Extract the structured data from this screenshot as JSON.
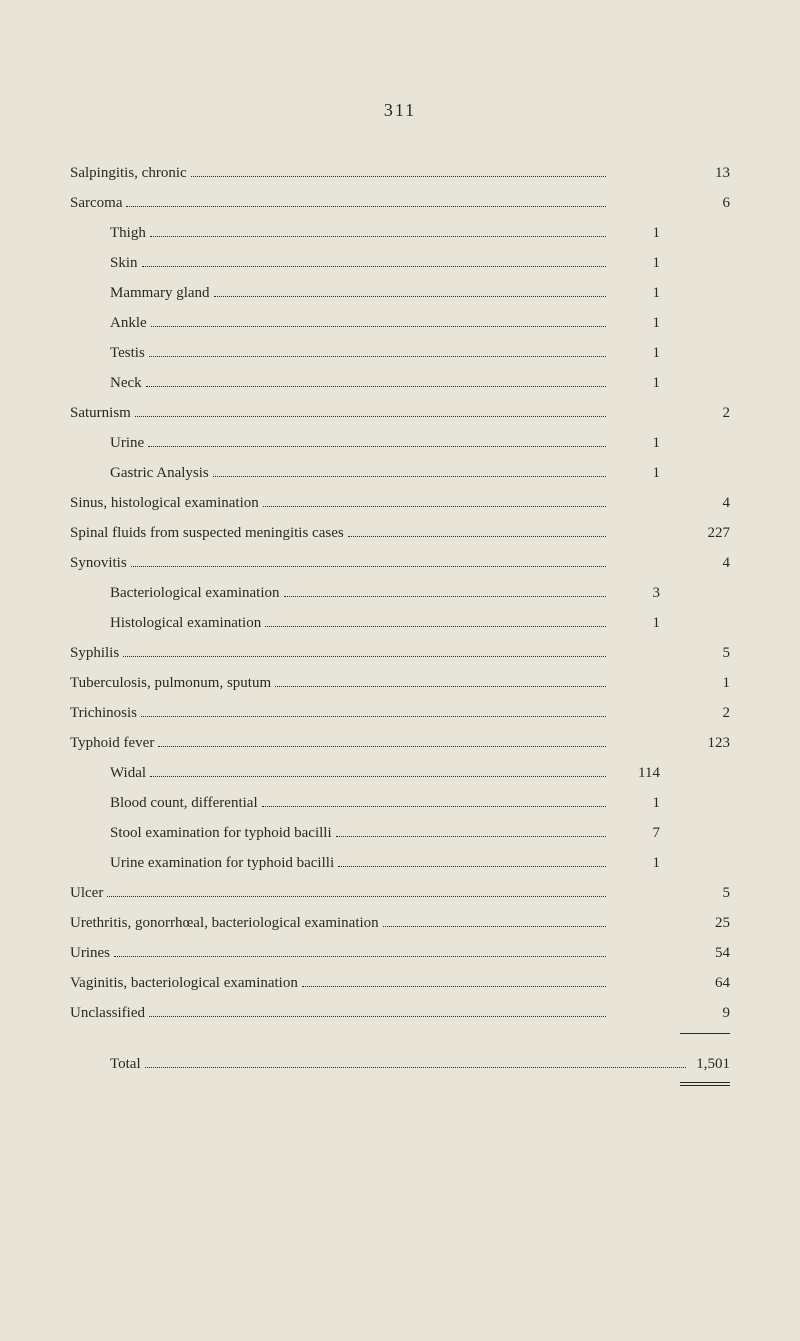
{
  "page_number": "311",
  "colors": {
    "background": "#e8e5d8",
    "text": "#2a2822"
  },
  "typography": {
    "font_family": "Georgia, Times New Roman, serif",
    "body_fontsize": 15,
    "page_number_fontsize": 18
  },
  "entries": [
    {
      "label": "Salpingitis, chronic",
      "indent": false,
      "sub": "",
      "main": "13"
    },
    {
      "label": "Sarcoma",
      "indent": false,
      "sub": "",
      "main": "6"
    },
    {
      "label": "Thigh",
      "indent": true,
      "sub": "1",
      "main": ""
    },
    {
      "label": "Skin",
      "indent": true,
      "sub": "1",
      "main": ""
    },
    {
      "label": "Mammary gland",
      "indent": true,
      "sub": "1",
      "main": ""
    },
    {
      "label": "Ankle",
      "indent": true,
      "sub": "1",
      "main": ""
    },
    {
      "label": "Testis",
      "indent": true,
      "sub": "1",
      "main": ""
    },
    {
      "label": "Neck",
      "indent": true,
      "sub": "1",
      "main": ""
    },
    {
      "label": "Saturnism",
      "indent": false,
      "sub": "",
      "main": "2"
    },
    {
      "label": "Urine",
      "indent": true,
      "sub": "1",
      "main": ""
    },
    {
      "label": "Gastric Analysis",
      "indent": true,
      "sub": "1",
      "main": ""
    },
    {
      "label": "Sinus, histological examination",
      "indent": false,
      "sub": "",
      "main": "4"
    },
    {
      "label": "Spinal fluids from suspected meningitis cases",
      "indent": false,
      "sub": "",
      "main": "227"
    },
    {
      "label": "Synovitis",
      "indent": false,
      "sub": "",
      "main": "4"
    },
    {
      "label": "Bacteriological examination",
      "indent": true,
      "sub": "3",
      "main": ""
    },
    {
      "label": "Histological examination",
      "indent": true,
      "sub": "1",
      "main": ""
    },
    {
      "label": "Syphilis",
      "indent": false,
      "sub": "",
      "main": "5"
    },
    {
      "label": "Tuberculosis, pulmonum, sputum",
      "indent": false,
      "sub": "",
      "main": "1"
    },
    {
      "label": "Trichinosis",
      "indent": false,
      "sub": "",
      "main": "2"
    },
    {
      "label": "Typhoid fever",
      "indent": false,
      "sub": "",
      "main": "123"
    },
    {
      "label": "Widal",
      "indent": true,
      "sub": "114",
      "main": ""
    },
    {
      "label": "Blood count, differential",
      "indent": true,
      "sub": "1",
      "main": ""
    },
    {
      "label": "Stool examination for typhoid bacilli",
      "indent": true,
      "sub": "7",
      "main": ""
    },
    {
      "label": "Urine examination for typhoid bacilli",
      "indent": true,
      "sub": "1",
      "main": ""
    },
    {
      "label": "Ulcer",
      "indent": false,
      "sub": "",
      "main": "5"
    },
    {
      "label": "Urethritis, gonorrhœal, bacteriological examination",
      "indent": false,
      "sub": "",
      "main": "25"
    },
    {
      "label": "Urines",
      "indent": false,
      "sub": "",
      "main": "54"
    },
    {
      "label": "Vaginitis, bacteriological examination",
      "indent": false,
      "sub": "",
      "main": "64"
    },
    {
      "label": "Unclassified",
      "indent": false,
      "sub": "",
      "main": "9"
    }
  ],
  "total": {
    "label": "Total",
    "value": "1,501"
  }
}
